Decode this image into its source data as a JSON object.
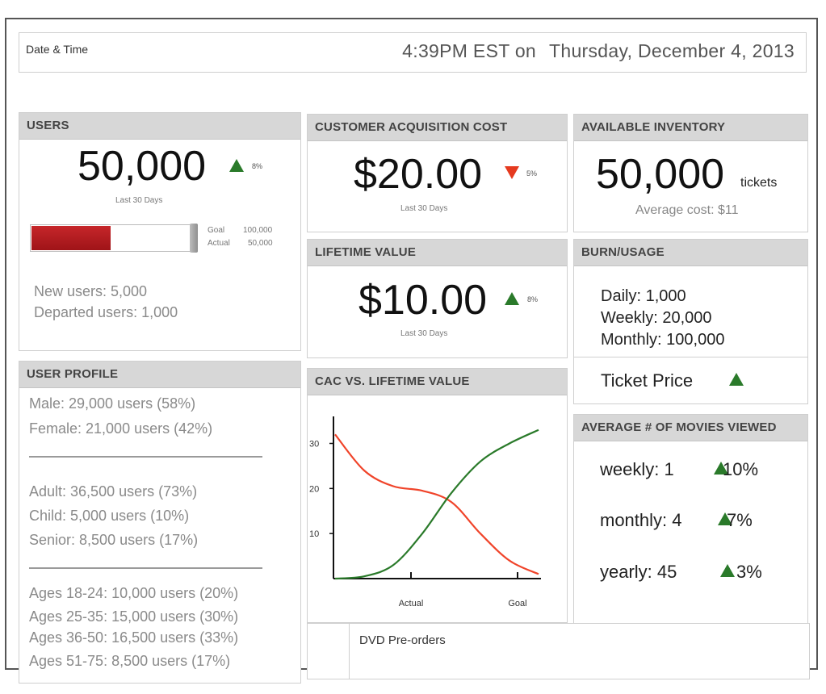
{
  "datetime": {
    "label": "Date & Time",
    "time": "4:39PM  EST on",
    "date": "Thursday, December 4, 2013"
  },
  "users": {
    "header": "USERS",
    "value": "50,000",
    "trend": "up",
    "change": "8%",
    "period": "Last 30 Days",
    "goal_label": "Goal",
    "goal_value": "100,000",
    "actual_label": "Actual",
    "actual_value": "50,000",
    "progress_fraction": 0.5,
    "new_users": "New users: 5,000",
    "departed_users": "Departed users: 1,000"
  },
  "cac": {
    "header": "CUSTOMER ACQUISITION COST",
    "value": "$20.00",
    "trend": "down",
    "change": "5%",
    "period": "Last 30 Days"
  },
  "inventory": {
    "header": "AVAILABLE INVENTORY",
    "value": "50,000",
    "unit": "tickets",
    "average_cost": "Average cost: $11"
  },
  "ltv": {
    "header": "LIFETIME VALUE",
    "value": "$10.00",
    "trend": "up",
    "change": "8%",
    "period": "Last 30 Days"
  },
  "burn": {
    "header": "BURN/USAGE",
    "daily": "Daily: 1,000",
    "weekly": "Weekly: 20,000",
    "monthly": "Monthly: 100,000",
    "ticket_price": "Ticket Price",
    "ticket_trend": "up"
  },
  "profile": {
    "header": "USER PROFILE",
    "gender": [
      "Male: 29,000 users (58%)",
      "Female: 21,000 users (42%)"
    ],
    "age_group": [
      "Adult: 36,500 users (73%)",
      "Child: 5,000 users (10%)",
      "Senior: 8,500 users  (17%)"
    ],
    "age_range": [
      "Ages 18-24: 10,000 users (20%)",
      "Ages 25-35: 15,000 users (30%)",
      "Ages 36-50: 16,500 users (33%)",
      "Ages 51-75: 8,500 users (17%)"
    ]
  },
  "cac_vs_ltv": {
    "header": "CAC VS. LIFETIME VALUE",
    "chart_data": {
      "type": "line",
      "y_ticks": [
        "30",
        "20",
        "10"
      ],
      "x_ticks": [
        "Actual",
        "Goal"
      ],
      "series": [
        {
          "color": "#f0442a",
          "values": [
            32,
            24,
            20.5,
            19.5,
            17,
            10,
            4,
            1
          ]
        },
        {
          "color": "#2a7a2a",
          "values": [
            0,
            0.5,
            3,
            10,
            19,
            26,
            30,
            33
          ]
        }
      ],
      "ylim": [
        0,
        36
      ]
    }
  },
  "movies": {
    "header": "AVERAGE # OF MOVIES VIEWED",
    "weekly": "weekly: 1",
    "weekly_change": "10%",
    "monthly": "monthly: 4",
    "monthly_change": "7%",
    "yearly": "yearly: 45",
    "yearly_change": "3%"
  },
  "dvd": {
    "label": "DVD Pre-orders"
  },
  "colors": {
    "up": "#2a7a2a",
    "down": "#e53a1f",
    "bar": "#b01c20"
  }
}
